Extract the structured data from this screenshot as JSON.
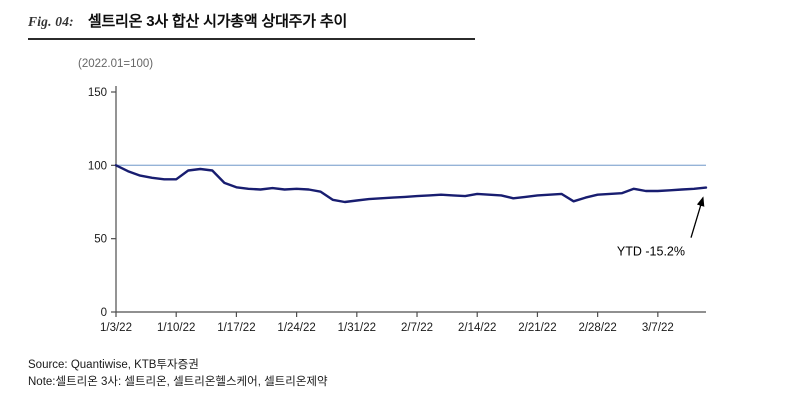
{
  "figure": {
    "label": "Fig. 04:",
    "title": "셀트리온 3사 합산 시가총액 상대주가 추이",
    "unit_note": "(2022.01=100)"
  },
  "chart_data": {
    "type": "line",
    "title": "셀트리온 3사 합산 시가총액 상대주가 추이",
    "x_tick_labels": [
      "1/3/22",
      "1/10/22",
      "1/17/22",
      "1/24/22",
      "1/31/22",
      "2/7/22",
      "2/14/22",
      "2/21/22",
      "2/28/22",
      "3/7/22"
    ],
    "y_ticks": [
      0,
      50,
      100,
      150
    ],
    "ylim": [
      0,
      150
    ],
    "grid": false,
    "legend": false,
    "reference_line": 100,
    "reference_line_color": "#95b3d7",
    "axis_color": "#4d4d4d",
    "line_color": "#181d70",
    "series": [
      {
        "name": "셀트리온 3사 합산 시가총액 상대주가",
        "values": [
          100,
          96,
          93,
          91.5,
          90.5,
          90.5,
          96.5,
          97.5,
          96.5,
          88,
          85,
          84,
          83.5,
          84.5,
          83.5,
          84,
          83.5,
          82,
          76.5,
          75,
          76,
          77,
          77.5,
          78,
          78.5,
          79,
          79.5,
          80,
          79.5,
          79,
          80.5,
          80,
          79.5,
          77.5,
          78.5,
          79.5,
          80,
          80.5,
          75.5,
          78,
          80,
          80.5,
          81,
          84,
          82.5,
          82.5,
          83,
          83.5,
          84,
          84.8
        ]
      }
    ],
    "annotation": {
      "text": "YTD -15.2%"
    }
  },
  "footer": {
    "source": "Source: Quantiwise, KTB투자증권",
    "note": "Note:셀트리온 3사: 셀트리온, 셀트리온헬스케어, 셀트리온제약"
  }
}
